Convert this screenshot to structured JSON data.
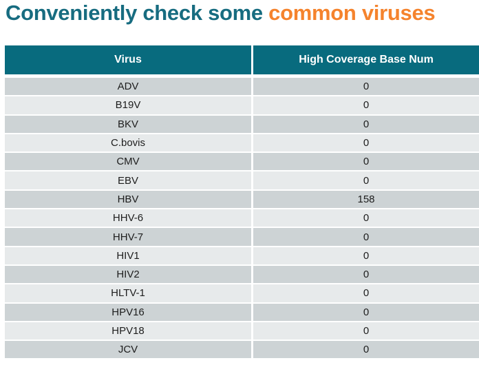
{
  "title": {
    "part1": "Conveniently check some ",
    "part2": "common viruses"
  },
  "colors": {
    "title_teal": "#176C80",
    "title_orange": "#F5832D",
    "header_bg": "#086B7E",
    "header_text": "#FFFFFF",
    "row_dark": "#CDD3D5",
    "row_light": "#E7EAEB",
    "row_text": "#1D1D1D"
  },
  "table": {
    "header": {
      "virus": "Virus",
      "coverage": "High Coverage Base Num"
    },
    "rows": [
      {
        "virus": "ADV",
        "value": "0"
      },
      {
        "virus": "B19V",
        "value": "0"
      },
      {
        "virus": "BKV",
        "value": "0"
      },
      {
        "virus": "C.bovis",
        "value": "0"
      },
      {
        "virus": "CMV",
        "value": "0"
      },
      {
        "virus": "EBV",
        "value": "0"
      },
      {
        "virus": "HBV",
        "value": "158"
      },
      {
        "virus": "HHV-6",
        "value": "0"
      },
      {
        "virus": "HHV-7",
        "value": "0"
      },
      {
        "virus": "HIV1",
        "value": "0"
      },
      {
        "virus": "HIV2",
        "value": "0"
      },
      {
        "virus": "HLTV-1",
        "value": "0"
      },
      {
        "virus": "HPV16",
        "value": "0"
      },
      {
        "virus": "HPV18",
        "value": "0"
      },
      {
        "virus": "JCV",
        "value": "0"
      }
    ]
  }
}
